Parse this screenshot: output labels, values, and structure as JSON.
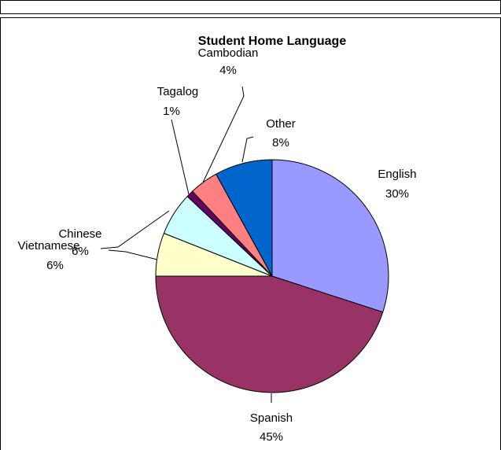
{
  "chart_data": {
    "type": "pie",
    "title": "Student Home Language",
    "categories": [
      "English",
      "Spanish",
      "Vietnamese",
      "Chinese",
      "Tagalog",
      "Cambodian",
      "Other"
    ],
    "values": [
      30,
      45,
      6,
      6,
      1,
      4,
      8
    ],
    "value_labels": [
      "30%",
      "45%",
      "6%",
      "6%",
      "1%",
      "4%",
      "8%"
    ],
    "colors": [
      "#9999ff",
      "#993366",
      "#ffffcc",
      "#ccffff",
      "#660066",
      "#ff8080",
      "#0066cc"
    ]
  }
}
